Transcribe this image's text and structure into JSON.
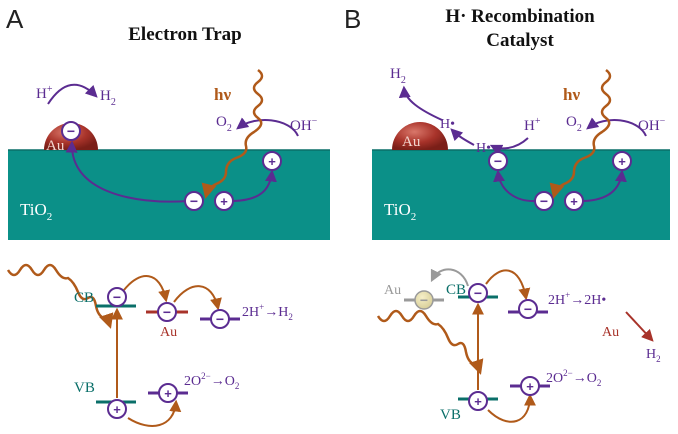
{
  "panel_a": {
    "letter": "A",
    "title": "Electron Trap",
    "top": {
      "h_plus": "H",
      "h_plus_sup": "+",
      "h2": "H",
      "h2_sub": "2",
      "hv": "hν",
      "o2": "O",
      "o2_sub": "2",
      "oh": "OH",
      "oh_sup": "−",
      "au": "Au",
      "tio2": "TiO",
      "tio2_sub": "2"
    },
    "bottom": {
      "cb": "CB",
      "vb": "VB",
      "au": "Au",
      "reduction": "2H",
      "reduction_sup": "+",
      "reduction_arrow": "→H",
      "reduction_sub": "2",
      "oxidation": "2O",
      "oxidation_sup": "2−",
      "oxidation_arrow": "→O",
      "oxidation_sub": "2"
    }
  },
  "panel_b": {
    "letter": "B",
    "title_line1": "H· Recombination",
    "title_line2": "Catalyst",
    "top": {
      "h2": "H",
      "h2_sub": "2",
      "h_dot_1": "H•",
      "h_dot_2": "H•",
      "h_plus": "H",
      "h_plus_sup": "+",
      "hv": "hν",
      "o2": "O",
      "o2_sub": "2",
      "oh": "OH",
      "oh_sup": "−",
      "au": "Au",
      "tio2": "TiO",
      "tio2_sub": "2"
    },
    "bottom": {
      "au": "Au",
      "cb": "CB",
      "vb": "VB",
      "reduction": "2H",
      "reduction_sup": "+",
      "reduction_arrow": "→2H•",
      "au_right": "Au",
      "h2": "H",
      "h2_sub": "2",
      "oxidation": "2O",
      "oxidation_sup": "2−",
      "oxidation_arrow": "→O",
      "oxidation_sub": "2"
    }
  },
  "symbols": {
    "minus": "−",
    "plus": "+"
  },
  "colors": {
    "teal": "#0b9088",
    "teal_dark": "#0a6f69",
    "purple": "#5b2c91",
    "orange": "#b05a1a",
    "au_red": "#a8332a",
    "grey": "#9a9a9a"
  }
}
